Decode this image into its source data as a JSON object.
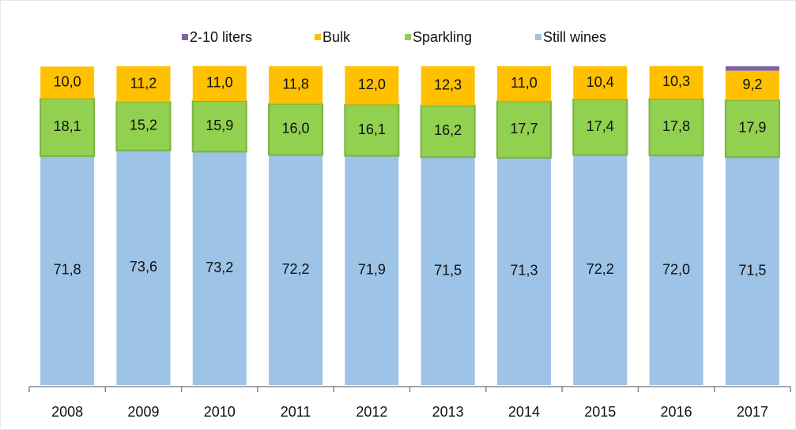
{
  "chart_data": {
    "type": "stacked_bar",
    "categories": [
      "2008",
      "2009",
      "2010",
      "2011",
      "2012",
      "2013",
      "2014",
      "2015",
      "2016",
      "2017"
    ],
    "series": [
      {
        "name": "Still wines",
        "color": "#9dc3e6",
        "values": [
          71.8,
          73.6,
          73.2,
          72.2,
          71.9,
          71.5,
          71.3,
          72.2,
          72.0,
          71.5
        ],
        "value_labels": [
          "71,8",
          "73,6",
          "73,2",
          "72,2",
          "71,9",
          "71,5",
          "71,3",
          "72,2",
          "72,0",
          "71,5"
        ]
      },
      {
        "name": "Sparkling",
        "color": "#92d050",
        "values": [
          18.1,
          15.2,
          15.9,
          16.0,
          16.1,
          16.2,
          17.7,
          17.4,
          17.8,
          17.9
        ],
        "value_labels": [
          "18,1",
          "15,2",
          "15,9",
          "16,0",
          "16,1",
          "16,2",
          "17,7",
          "17,4",
          "17,8",
          "17,9"
        ]
      },
      {
        "name": "Bulk",
        "color": "#ffc000",
        "values": [
          10.0,
          11.2,
          11.0,
          11.8,
          12.0,
          12.3,
          11.0,
          10.4,
          10.3,
          9.2
        ],
        "value_labels": [
          "10,0",
          "11,2",
          "11,0",
          "11,8",
          "12,0",
          "12,3",
          "11,0",
          "10,4",
          "10,3",
          "9,2"
        ]
      },
      {
        "name": "2-10 liters",
        "color": "#8064a2",
        "values": [
          0,
          0,
          0,
          0,
          0,
          0,
          0,
          0,
          0,
          1.4
        ]
      }
    ],
    "ylim": [
      0,
      100
    ]
  }
}
